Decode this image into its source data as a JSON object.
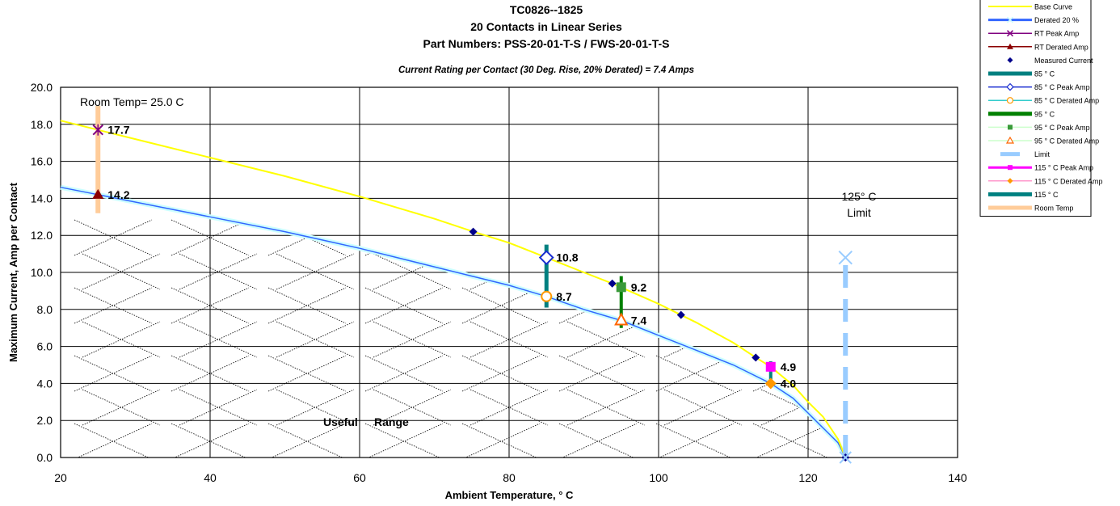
{
  "chart_data": {
    "type": "line",
    "title": "TC0826--1825",
    "subtitle1": "20 Contacts in Linear Series",
    "subtitle2": "Part Numbers: PSS-20-01-T-S / FWS-20-01-T-S",
    "subtitle3": "Current Rating per Contact (30 Deg. Rise, 20% Derated)  =  7.4 Amps",
    "xlabel": "Ambient Temperature,  ° C",
    "ylabel": "Maximum Current, Amp per Contact",
    "xlim": [
      20,
      140
    ],
    "ylim": [
      0,
      20
    ],
    "x_ticks": [
      20,
      40,
      60,
      80,
      100,
      120,
      140
    ],
    "y_ticks": [
      "0.0",
      "2.0",
      "4.0",
      "6.0",
      "8.0",
      "10.0",
      "12.0",
      "14.0",
      "16.0",
      "18.0",
      "20.0"
    ],
    "grid": true,
    "legend_position": "top-right",
    "colors": {
      "base": "#ffff00",
      "derated": "#3366ff",
      "rt_peak": "#800080",
      "rt_derated": "#8b0000",
      "measured": "#00008b",
      "c85": "#008080",
      "c85_peak": "#1a2ed0",
      "c85_derated": "#ff9900",
      "c95": "#008000",
      "c95_peak": "#3a9a3a",
      "c95_derated": "#ff6600",
      "limit": "#99ccff",
      "c115_peak": "#ff00ff",
      "c115_derated": "#ff9900",
      "c115": "#008080",
      "room_temp": "#ffcc99",
      "derated_band": "#ccffff"
    },
    "base_curve": {
      "name": "Base Curve",
      "x": [
        20,
        25,
        30,
        40,
        50,
        60,
        70,
        75.2,
        80,
        85,
        90,
        93.8,
        100,
        103,
        105,
        110,
        113,
        115,
        118,
        120,
        122,
        124,
        125
      ],
      "y": [
        18.2,
        17.7,
        17.2,
        16.2,
        15.2,
        14.1,
        12.9,
        12.2,
        11.6,
        10.8,
        10.0,
        9.4,
        8.3,
        7.7,
        7.3,
        6.2,
        5.4,
        4.9,
        3.9,
        3.0,
        2.2,
        1.0,
        0.0
      ]
    },
    "derated_curve": {
      "name": "Derated 20 %",
      "x": [
        20,
        25,
        30,
        40,
        50,
        60,
        70,
        80,
        85,
        90,
        95,
        100,
        105,
        110,
        115,
        118,
        120,
        122,
        124,
        125
      ],
      "y": [
        14.6,
        14.2,
        13.8,
        13.0,
        12.2,
        11.3,
        10.3,
        9.3,
        8.7,
        8.0,
        7.4,
        6.6,
        5.8,
        5.0,
        4.0,
        3.2,
        2.4,
        1.6,
        0.8,
        0.0
      ]
    },
    "measured_current": {
      "name": "Measured Current",
      "x": [
        75.2,
        84.8,
        93.8,
        103,
        113,
        125
      ],
      "y": [
        12.2,
        10.9,
        9.4,
        7.7,
        5.4,
        0.0
      ]
    },
    "rt_peak": {
      "name": "RT Peak Amp",
      "x": 25,
      "y": 17.7,
      "label": "17.7"
    },
    "rt_derated": {
      "name": "RT Derated Amp",
      "x": 25,
      "y": 14.2,
      "label": "14.2"
    },
    "room_temp_bar": {
      "name": "Room Temp",
      "x": 25,
      "y": [
        13.2,
        19.0
      ]
    },
    "c85": {
      "name": "85 ° C",
      "x": 85,
      "y": [
        8.1,
        11.5
      ]
    },
    "c85_peak": {
      "name": "85  ° C Peak Amp",
      "x": 85,
      "y": 10.8,
      "label": "10.8"
    },
    "c85_derated": {
      "name": "85  ° C Derated Amp",
      "x": 85,
      "y": 8.7,
      "label": "8.7"
    },
    "c95": {
      "name": "95  ° C",
      "x": 95,
      "y": [
        7.0,
        9.8
      ]
    },
    "c95_peak": {
      "name": "95  ° C Peak Amp",
      "x": 95,
      "y": 9.2,
      "label": "9.2"
    },
    "c95_derated": {
      "name": "95  ° C Derated Amp",
      "x": 95,
      "y": 7.4,
      "label": "7.4"
    },
    "c115": {
      "name": "115  ° C",
      "x": 115,
      "y": [
        3.8,
        5.2
      ]
    },
    "c115_peak": {
      "name": "115  ° C Peak Amp",
      "x": 115,
      "y": 4.9,
      "label": "4.9"
    },
    "c115_derated": {
      "name": "115  ° C Derated Amp",
      "x": 115,
      "y": 4.0,
      "label": "4.0"
    },
    "limit": {
      "name": "Limit",
      "x": 125,
      "y": [
        0,
        10.8
      ]
    },
    "annotations": {
      "room_temp": "Room Temp= 25.0 C",
      "limit_line1": "125° C",
      "limit_line2": "Limit",
      "useful": "Useful",
      "range": "Range"
    },
    "legend": [
      {
        "key": "base_curve",
        "label": "Base Curve"
      },
      {
        "key": "derated_curve",
        "label": "Derated 20 %"
      },
      {
        "key": "rt_peak",
        "label": "RT Peak Amp"
      },
      {
        "key": "rt_derated",
        "label": "RT Derated Amp"
      },
      {
        "key": "measured_current",
        "label": "Measured Current"
      },
      {
        "key": "c85",
        "label": "85 ° C"
      },
      {
        "key": "c85_peak",
        "label": "85  ° C Peak Amp"
      },
      {
        "key": "c85_derated",
        "label": "85  ° C Derated Amp"
      },
      {
        "key": "c95",
        "label": "95  ° C"
      },
      {
        "key": "c95_peak",
        "label": "95  ° C Peak Amp"
      },
      {
        "key": "c95_derated",
        "label": "95  ° C Derated Amp"
      },
      {
        "key": "limit",
        "label": "Limit"
      },
      {
        "key": "c115_peak",
        "label": "115  ° C Peak Amp"
      },
      {
        "key": "c115_derated",
        "label": "115  ° C Derated Amp"
      },
      {
        "key": "c115",
        "label": "115  ° C"
      },
      {
        "key": "room_temp_bar",
        "label": "Room Temp"
      }
    ]
  }
}
